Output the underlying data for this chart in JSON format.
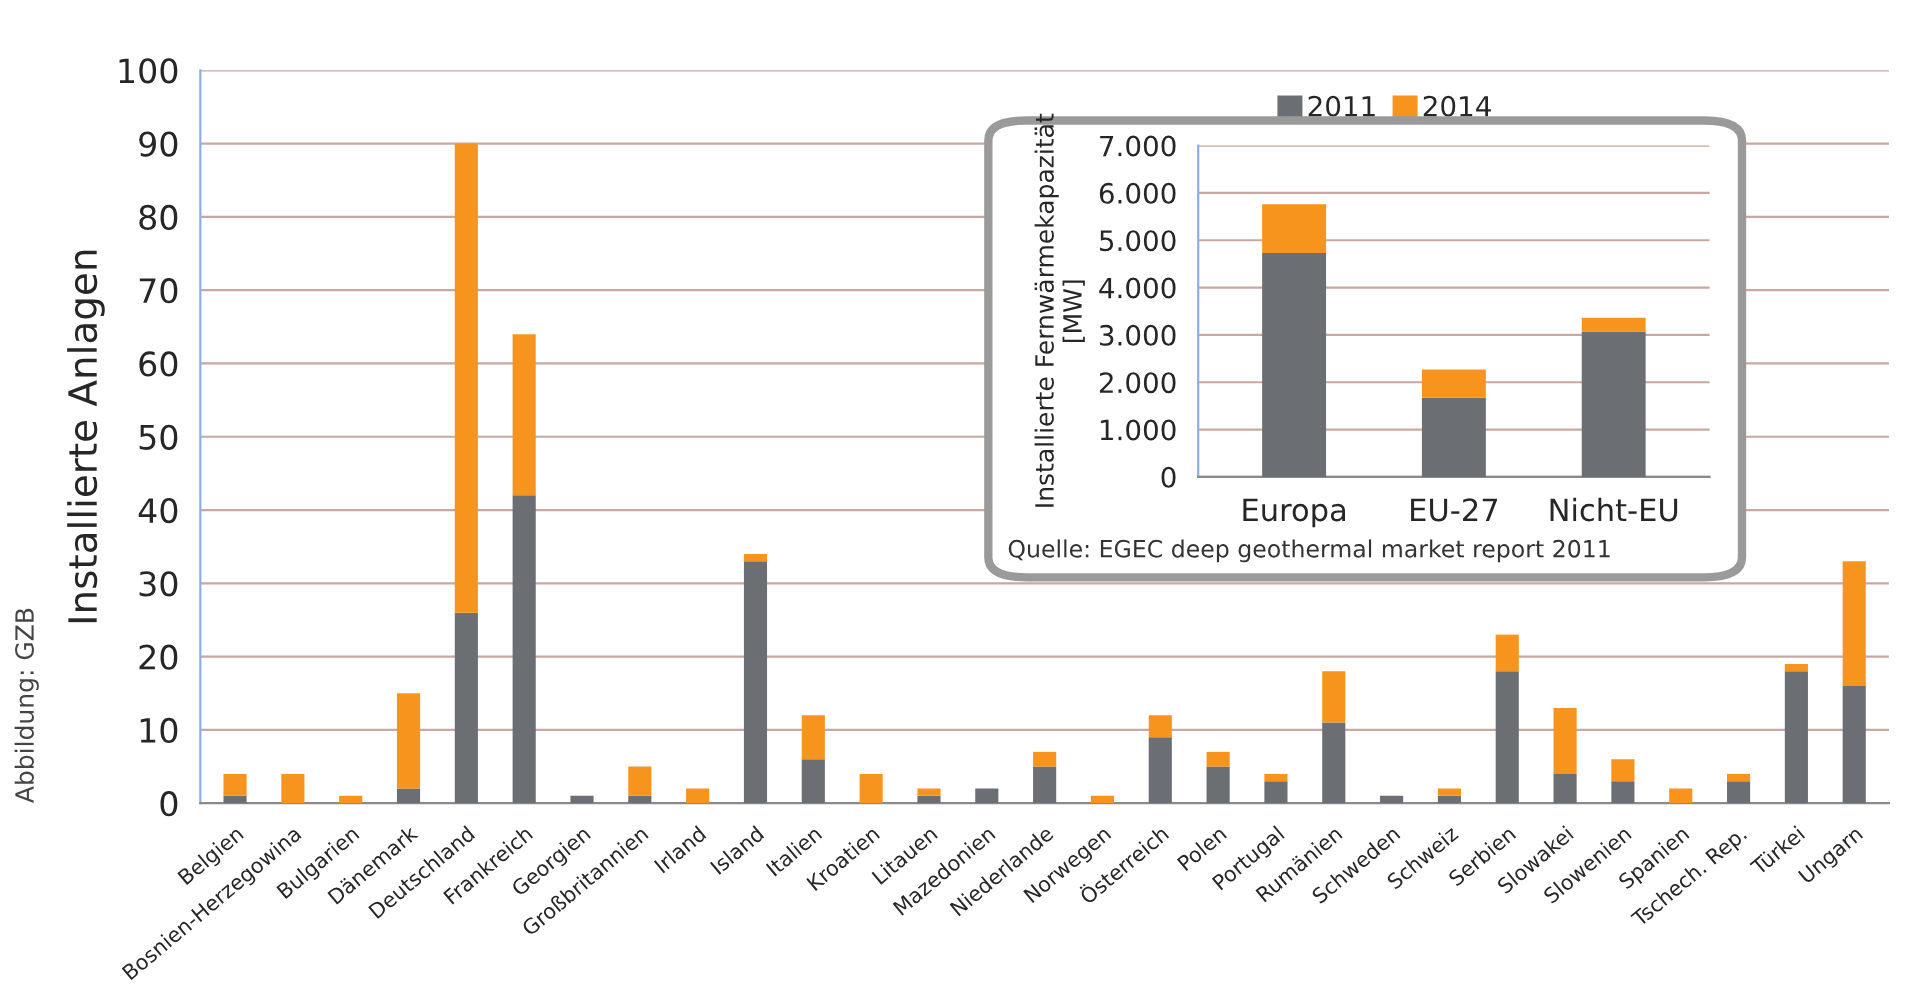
{
  "chart_data": [
    {
      "type": "bar",
      "stacked": true,
      "ylabel": "Installierte Anlagen",
      "categories": [
        "Belgien",
        "Bosnien-Herzegowina",
        "Bulgarien",
        "Dänemark",
        "Deutschland",
        "Frankreich",
        "Georgien",
        "Großbritannien",
        "Irland",
        "Island",
        "Italien",
        "Kroatien",
        "Litauen",
        "Mazedonien",
        "Niederlande",
        "Norwegen",
        "Österreich",
        "Polen",
        "Portugal",
        "Rumänien",
        "Schweden",
        "Schweiz",
        "Serbien",
        "Slowakei",
        "Slowenien",
        "Spanien",
        "Tschech. Rep.",
        "Türkei",
        "Ungarn"
      ],
      "series": [
        {
          "name": "2011",
          "color": "#6b6e72",
          "values": [
            1,
            0,
            0,
            2,
            26,
            42,
            1,
            1,
            0,
            33,
            6,
            0,
            1,
            2,
            5,
            0,
            9,
            5,
            3,
            11,
            1,
            1,
            18,
            4,
            3,
            0,
            3,
            18,
            16
          ]
        },
        {
          "name": "2014",
          "color": "#f7941d",
          "values": [
            3,
            4,
            1,
            13,
            64,
            22,
            0,
            4,
            2,
            1,
            6,
            4,
            1,
            0,
            2,
            1,
            3,
            2,
            1,
            7,
            0,
            1,
            5,
            9,
            3,
            2,
            1,
            1,
            17
          ]
        }
      ],
      "ylim": [
        0,
        100
      ],
      "yticks": [
        0,
        10,
        20,
        30,
        40,
        50,
        60,
        70,
        80,
        90,
        100
      ],
      "grid": "y",
      "legend": "top right",
      "annotations": [
        "Abbildung: GZB"
      ]
    },
    {
      "type": "bar",
      "stacked": true,
      "ylabel": "Installierte Fernwärmekapazität\n[MW]",
      "categories": [
        "Europa",
        "EU-27",
        "Nicht-EU"
      ],
      "series": [
        {
          "color": "#6b6e72",
          "values": [
            4730,
            1670,
            3070
          ]
        },
        {
          "color": "#f7941d",
          "values": [
            1030,
            600,
            290
          ]
        }
      ],
      "ylim": [
        0,
        7000
      ],
      "yticks": [
        {
          "value": 0,
          "label": "0"
        },
        {
          "value": 1000,
          "label": "1.000"
        },
        {
          "value": 2000,
          "label": "2.000"
        },
        {
          "value": 3000,
          "label": "3.000"
        },
        {
          "value": 4000,
          "label": "4.000"
        },
        {
          "value": 5000,
          "label": "5.000"
        },
        {
          "value": 6000,
          "label": "6.000"
        },
        {
          "value": 7000,
          "label": "7.000"
        }
      ],
      "grid": "y",
      "annotations": [
        "Quelle: EGEC deep geothermal market report 2011"
      ]
    }
  ]
}
